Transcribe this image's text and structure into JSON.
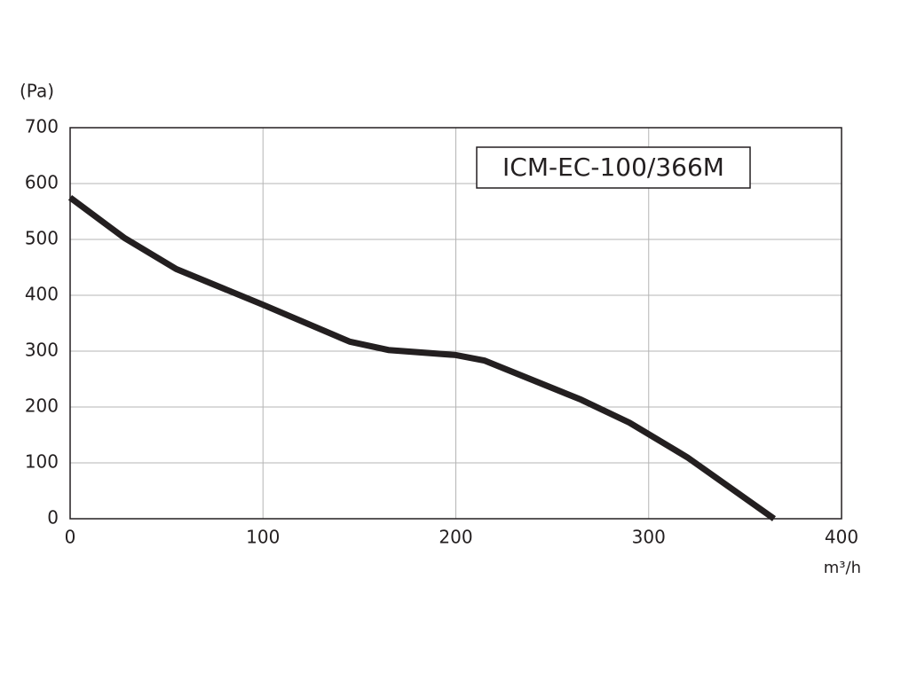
{
  "chart_data": {
    "type": "line",
    "y_label": "(Pa)",
    "x_label": "m³/h",
    "annotation": "ICM-EC-100/366M",
    "x": [
      0,
      28,
      55,
      100,
      145,
      165,
      200,
      215,
      265,
      290,
      320,
      365
    ],
    "values": [
      575,
      503,
      447,
      383,
      317,
      302,
      293,
      283,
      213,
      172,
      110,
      0
    ],
    "color": "#231f20",
    "xlim": [
      0,
      400
    ],
    "xticks": [
      0,
      100,
      200,
      300,
      400
    ],
    "ylim": [
      0,
      700
    ],
    "yticks": [
      0,
      100,
      200,
      300,
      400,
      500,
      600,
      700
    ],
    "grid": true
  }
}
